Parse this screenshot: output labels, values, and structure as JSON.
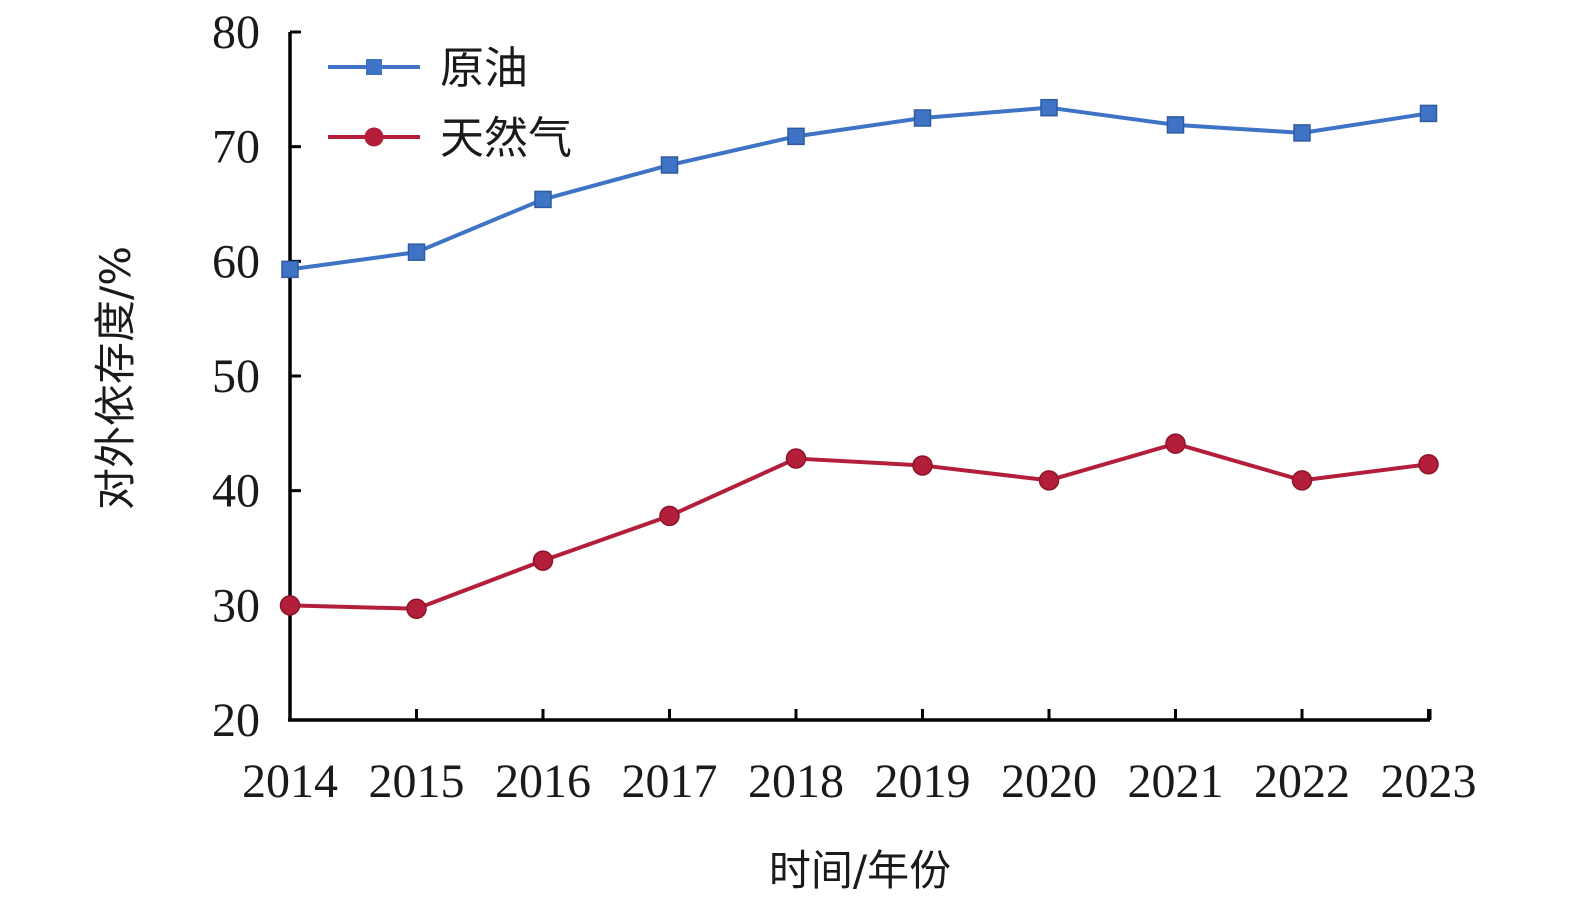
{
  "chart_data": {
    "type": "line",
    "title": "",
    "xlabel": "时间/年份",
    "ylabel": "对外依存度/%",
    "categories": [
      "2014",
      "2015",
      "2016",
      "2017",
      "2018",
      "2019",
      "2020",
      "2021",
      "2022",
      "2023"
    ],
    "ylim": [
      20,
      80
    ],
    "yticks": [
      20,
      30,
      40,
      50,
      60,
      70,
      80
    ],
    "grid": false,
    "legend_position": "top-left",
    "series": [
      {
        "name": "原油",
        "marker": "square",
        "color": "#3f73c6",
        "values": [
          59.3,
          60.8,
          65.4,
          68.4,
          70.9,
          72.5,
          73.4,
          71.9,
          71.2,
          72.9
        ]
      },
      {
        "name": "天然气",
        "marker": "circle",
        "color": "#b31e3a",
        "values": [
          30.0,
          29.7,
          33.9,
          37.8,
          42.8,
          42.2,
          40.9,
          44.1,
          40.9,
          42.3
        ]
      }
    ]
  }
}
